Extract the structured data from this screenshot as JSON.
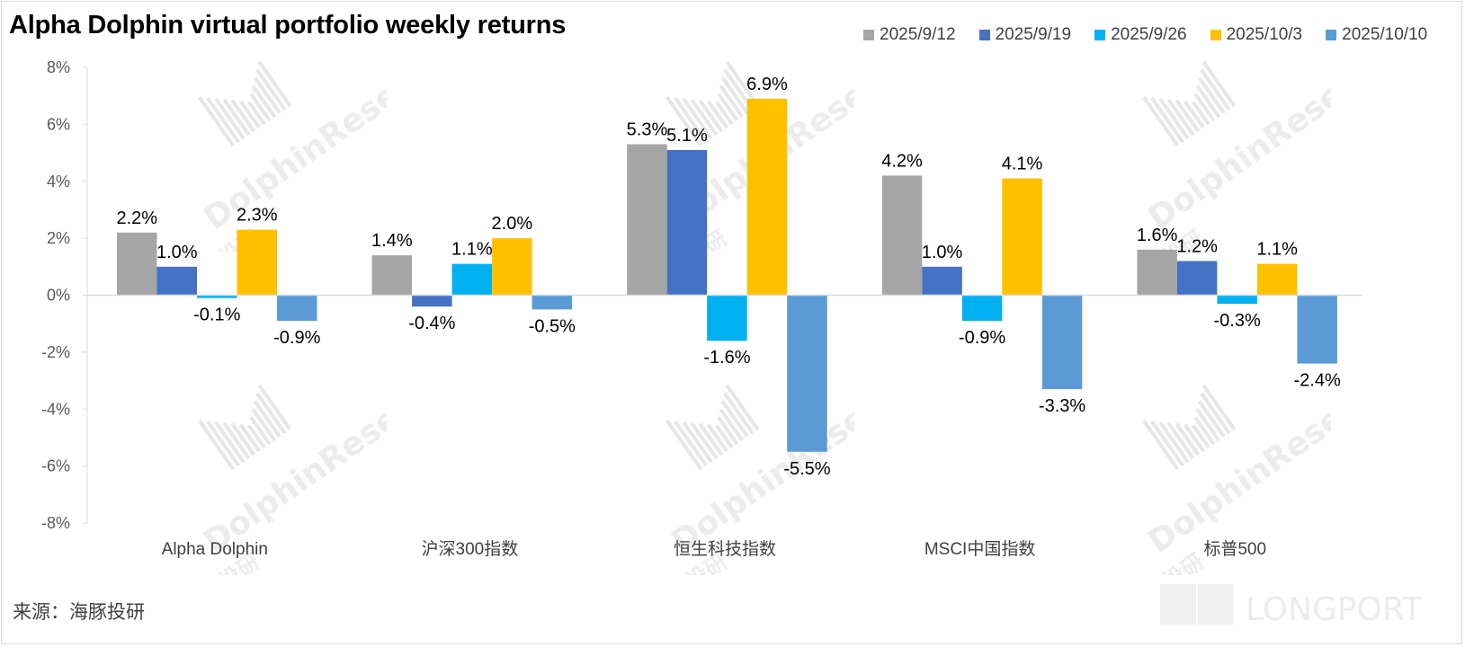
{
  "title": "Alpha Dolphin virtual portfolio weekly returns",
  "source": "来源：海豚投研",
  "colors": {
    "series": [
      "#a5a5a5",
      "#4472c4",
      "#00b0f0",
      "#ffc000",
      "#5b9bd5"
    ],
    "axis": "#d9d9d9"
  },
  "watermark": {
    "brand": "LONGPORT",
    "cn": "海豚投研",
    "en": "DolphinResearch"
  },
  "chart_data": {
    "type": "bar",
    "title": "Alpha Dolphin virtual portfolio weekly returns",
    "categories": [
      "Alpha Dolphin",
      "沪深300指数",
      "恒生科技指数",
      "MSCI中国指数",
      "标普500"
    ],
    "series": [
      {
        "name": "2025/9/12",
        "values": [
          2.2,
          1.4,
          5.3,
          4.2,
          1.6
        ]
      },
      {
        "name": "2025/9/19",
        "values": [
          1.0,
          -0.4,
          5.1,
          1.0,
          1.2
        ]
      },
      {
        "name": "2025/9/26",
        "values": [
          -0.1,
          1.1,
          -1.6,
          -0.9,
          -0.3
        ]
      },
      {
        "name": "2025/10/3",
        "values": [
          2.3,
          2.0,
          6.9,
          4.1,
          1.1
        ]
      },
      {
        "name": "2025/10/10",
        "values": [
          -0.9,
          -0.5,
          -5.5,
          -3.3,
          -2.4
        ]
      }
    ],
    "data_labels": [
      [
        "2.2%",
        "1.4%",
        "5.3%",
        "4.2%",
        "1.6%"
      ],
      [
        "1.0%",
        "-0.4%",
        "5.1%",
        "1.0%",
        "1.2%"
      ],
      [
        "-0.1%",
        "1.1%",
        "-1.6%",
        "-0.9%",
        "-0.3%"
      ],
      [
        "2.3%",
        "2.0%",
        "6.9%",
        "4.1%",
        "1.1%"
      ],
      [
        "-0.9%",
        "-0.5%",
        "-5.5%",
        "-3.3%",
        "-2.4%"
      ]
    ],
    "ylim": [
      -8,
      8
    ],
    "yticks": [
      "8%",
      "6%",
      "4%",
      "2%",
      "0%",
      "-2%",
      "-4%",
      "-6%",
      "-8%"
    ],
    "xlabel": "",
    "ylabel": "",
    "grid": false,
    "legend": "top-right"
  }
}
